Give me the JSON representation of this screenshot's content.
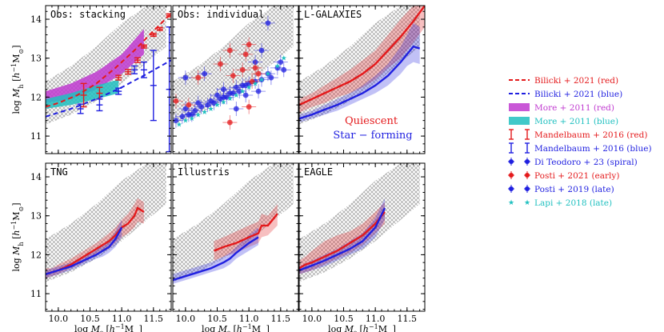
{
  "chart_data": {
    "type": "line",
    "xlabel": "log M_* [h^-1 M_⊙]",
    "ylabel": "log M_h [h^-1 M_⊙]",
    "xlim": [
      9.8,
      11.78
    ],
    "ylim": [
      10.55,
      14.35
    ],
    "xticks": [
      "10.0",
      "10.5",
      "11.0",
      "11.5"
    ],
    "yticks": [
      "11",
      "12",
      "13",
      "14"
    ],
    "colors": {
      "red": "#e41a1c",
      "blue": "#1f1fe0",
      "magenta": "#c03ad0",
      "cyan": "#20c0c0",
      "band": "#9a9a9a"
    },
    "reference_band": {
      "x": [
        9.8,
        10.2,
        10.6,
        11.0,
        11.4,
        11.7
      ],
      "lo": [
        11.3,
        11.55,
        11.9,
        12.35,
        12.9,
        13.3
      ],
      "hi": [
        12.4,
        12.8,
        13.3,
        13.9,
        14.35,
        14.35
      ]
    },
    "panels": [
      {
        "title": "Obs: stacking",
        "series": [
          {
            "name": "Bilicki + 2021 (red)",
            "kind": "dashed",
            "color": "red",
            "x": [
              9.8,
              10.0,
              10.3,
              10.6,
              10.9,
              11.2,
              11.5,
              11.78
            ],
            "y": [
              11.75,
              11.85,
              12.05,
              12.35,
              12.75,
              13.2,
              13.7,
              14.15
            ]
          },
          {
            "name": "Bilicki + 2021 (blue)",
            "kind": "dashed",
            "color": "blue",
            "x": [
              9.8,
              10.2,
              10.6,
              11.0,
              11.4,
              11.78
            ],
            "y": [
              11.5,
              11.7,
              11.95,
              12.25,
              12.6,
              12.95
            ]
          },
          {
            "name": "More + 2011 (red)",
            "kind": "band",
            "color": "magenta",
            "x": [
              9.8,
              10.2,
              10.6,
              11.0,
              11.35
            ],
            "lo": [
              11.85,
              11.95,
              12.2,
              12.6,
              13.1
            ],
            "hi": [
              12.15,
              12.35,
              12.65,
              13.1,
              13.75
            ]
          },
          {
            "name": "More + 2011 (blue)",
            "kind": "band",
            "color": "cyan",
            "x": [
              9.8,
              10.2,
              10.6,
              10.95
            ],
            "lo": [
              11.7,
              11.8,
              11.95,
              12.1
            ],
            "hi": [
              11.95,
              12.1,
              12.3,
              12.45
            ]
          },
          {
            "name": "Mandelbaum + 2016 (red)",
            "kind": "errorbar",
            "color": "red",
            "x": [
              10.4,
              10.65,
              10.95,
              11.1,
              11.25,
              11.35,
              11.5,
              11.6,
              11.75
            ],
            "y": [
              12.05,
              12.1,
              12.5,
              12.65,
              12.95,
              13.3,
              13.6,
              13.75,
              14.1
            ],
            "err": [
              0.3,
              0.15,
              0.06,
              0.06,
              0.06,
              0.04,
              0.04,
              0.04,
              0.04
            ]
          },
          {
            "name": "Mandelbaum + 2016 (blue)",
            "kind": "errorbar",
            "color": "blue",
            "x": [
              10.35,
              10.65,
              10.95,
              11.2,
              11.35,
              11.5,
              11.75
            ],
            "y": [
              11.7,
              11.8,
              12.15,
              12.7,
              12.7,
              12.3,
              12.2
            ],
            "err": [
              0.12,
              0.15,
              0.08,
              0.1,
              0.2,
              0.9,
              1.6
            ]
          }
        ]
      },
      {
        "title": "Obs: individual",
        "series": [
          {
            "name": "Di Teodoro + 23 (spiral)",
            "kind": "points",
            "color": "blue",
            "x": [
              10.0,
              10.2,
              10.4,
              10.5,
              10.6,
              10.7,
              10.8,
              10.9,
              10.95,
              11.0,
              11.1,
              11.15,
              11.2,
              11.3,
              11.35,
              11.45,
              11.5,
              11.55,
              11.2,
              11.3,
              11.1,
              10.8,
              10.1,
              10.3,
              10.6,
              10.0
            ],
            "y": [
              11.7,
              11.85,
              11.9,
              12.05,
              12.0,
              12.1,
              12.25,
              12.3,
              12.05,
              12.35,
              12.4,
              12.15,
              12.45,
              12.6,
              12.5,
              12.75,
              12.9,
              12.7,
              13.2,
              13.9,
              12.9,
              11.7,
              11.55,
              12.6,
              12.2,
              12.5
            ]
          },
          {
            "name": "Posti + 2021 (early)",
            "kind": "points",
            "color": "red",
            "x": [
              9.85,
              10.05,
              10.2,
              10.55,
              10.7,
              10.75,
              10.9,
              10.95,
              11.0,
              11.05,
              11.1,
              11.15,
              11.0,
              10.7
            ],
            "y": [
              11.9,
              11.8,
              12.5,
              12.85,
              13.2,
              12.55,
              12.7,
              13.1,
              13.35,
              12.4,
              12.75,
              12.6,
              11.75,
              11.35
            ]
          },
          {
            "name": "Posti + 2019 (late)",
            "kind": "points",
            "color": "blue",
            "x": [
              9.85,
              9.95,
              10.05,
              10.15,
              10.25,
              10.35,
              10.45,
              10.55,
              10.65,
              10.75,
              10.85,
              10.95
            ],
            "y": [
              11.4,
              11.5,
              11.55,
              11.65,
              11.75,
              11.8,
              11.85,
              11.95,
              12.0,
              12.1,
              12.15,
              12.3
            ]
          },
          {
            "name": "Lapi + 2018 (late)",
            "kind": "stars",
            "color": "cyan",
            "x": [
              9.9,
              10.0,
              10.1,
              10.2,
              10.3,
              10.4,
              10.5,
              10.6,
              10.7,
              10.8,
              10.9,
              11.0,
              11.1,
              11.2,
              11.3,
              11.45,
              11.55
            ],
            "y": [
              11.3,
              11.4,
              11.45,
              11.55,
              11.62,
              11.7,
              11.8,
              11.88,
              11.97,
              12.05,
              12.15,
              12.25,
              12.35,
              12.45,
              12.6,
              12.8,
              13.0
            ]
          }
        ]
      },
      {
        "title": "L-GALAXIES",
        "annotations": [
          "Quiescent",
          "Star − forming"
        ],
        "series": [
          {
            "name": "Quiescent",
            "kind": "line-band",
            "color": "red",
            "x": [
              9.8,
              10.0,
              10.2,
              10.4,
              10.6,
              10.8,
              11.0,
              11.2,
              11.4,
              11.6,
              11.78
            ],
            "y": [
              11.8,
              11.95,
              12.1,
              12.25,
              12.4,
              12.6,
              12.85,
              13.2,
              13.55,
              13.95,
              14.35
            ],
            "lo": [
              11.6,
              11.75,
              11.85,
              12.0,
              12.1,
              12.25,
              12.45,
              12.75,
              13.0,
              13.4,
              13.8
            ],
            "hi": [
              11.95,
              12.1,
              12.3,
              12.5,
              12.7,
              12.95,
              13.2,
              13.6,
              14.0,
              14.35,
              14.35
            ]
          },
          {
            "name": "Star − forming",
            "kind": "line-band",
            "color": "blue",
            "x": [
              9.8,
              10.0,
              10.2,
              10.4,
              10.6,
              10.8,
              11.0,
              11.2,
              11.4,
              11.5,
              11.6,
              11.7
            ],
            "y": [
              11.45,
              11.55,
              11.68,
              11.8,
              11.95,
              12.1,
              12.3,
              12.55,
              12.9,
              13.1,
              13.3,
              13.25
            ],
            "lo": [
              11.35,
              11.45,
              11.55,
              11.65,
              11.8,
              11.95,
              12.1,
              12.3,
              12.6,
              12.8,
              12.9,
              12.85
            ],
            "hi": [
              11.55,
              11.65,
              11.8,
              11.95,
              12.1,
              12.3,
              12.55,
              12.85,
              13.3,
              13.6,
              13.9,
              13.8
            ]
          }
        ]
      },
      {
        "title": "TNG",
        "series": [
          {
            "name": "red",
            "kind": "line-band",
            "color": "red",
            "x": [
              9.8,
              9.9,
              10.0,
              10.2,
              10.4,
              10.6,
              10.8,
              10.9,
              11.0,
              11.1,
              11.2,
              11.25,
              11.35
            ],
            "y": [
              11.5,
              11.55,
              11.6,
              11.75,
              11.95,
              12.15,
              12.35,
              12.5,
              12.7,
              12.8,
              13.0,
              13.2,
              13.1
            ],
            "lo": [
              11.4,
              11.45,
              11.5,
              11.65,
              11.8,
              12.0,
              12.15,
              12.3,
              12.45,
              12.55,
              12.7,
              12.85,
              12.8
            ],
            "hi": [
              11.65,
              11.65,
              11.75,
              11.9,
              12.1,
              12.3,
              12.55,
              12.7,
              12.9,
              13.05,
              13.3,
              13.45,
              13.35
            ]
          },
          {
            "name": "blue",
            "kind": "line-band",
            "color": "blue",
            "x": [
              9.8,
              10.0,
              10.2,
              10.4,
              10.6,
              10.7,
              10.8,
              10.9,
              11.0
            ],
            "y": [
              11.5,
              11.6,
              11.7,
              11.85,
              12.0,
              12.1,
              12.2,
              12.4,
              12.7
            ],
            "lo": [
              11.4,
              11.5,
              11.6,
              11.75,
              11.9,
              11.95,
              12.05,
              12.2,
              12.45
            ],
            "hi": [
              11.6,
              11.7,
              11.8,
              11.95,
              12.15,
              12.25,
              12.35,
              12.6,
              12.9
            ]
          }
        ]
      },
      {
        "title": "Illustris",
        "series": [
          {
            "name": "red",
            "kind": "line-band",
            "color": "red",
            "x": [
              10.45,
              10.6,
              10.8,
              11.0,
              11.15,
              11.2,
              11.3,
              11.45
            ],
            "y": [
              12.1,
              12.2,
              12.3,
              12.45,
              12.55,
              12.75,
              12.75,
              13.05
            ],
            "lo": [
              11.85,
              11.95,
              12.05,
              12.2,
              12.3,
              12.45,
              12.5,
              12.75
            ],
            "hi": [
              12.35,
              12.45,
              12.6,
              12.75,
              12.85,
              13.05,
              13.0,
              13.3
            ]
          },
          {
            "name": "blue",
            "kind": "line-band",
            "color": "blue",
            "x": [
              9.8,
              10.0,
              10.2,
              10.4,
              10.6,
              10.7,
              10.8,
              11.0,
              11.15
            ],
            "y": [
              11.35,
              11.45,
              11.55,
              11.65,
              11.8,
              11.9,
              12.05,
              12.3,
              12.45
            ],
            "lo": [
              11.25,
              11.35,
              11.45,
              11.55,
              11.65,
              11.75,
              11.9,
              12.1,
              12.25
            ],
            "hi": [
              11.5,
              11.6,
              11.7,
              11.8,
              11.95,
              12.05,
              12.2,
              12.5,
              12.7
            ]
          }
        ]
      },
      {
        "title": "EAGLE",
        "series": [
          {
            "name": "red",
            "kind": "line-band",
            "color": "red",
            "x": [
              9.8,
              9.9,
              10.0,
              10.2,
              10.4,
              10.6,
              10.8,
              11.0,
              11.15
            ],
            "y": [
              11.65,
              11.75,
              11.8,
              11.95,
              12.1,
              12.3,
              12.5,
              12.8,
              13.1
            ],
            "lo": [
              11.5,
              11.55,
              11.6,
              11.75,
              11.9,
              12.05,
              12.25,
              12.55,
              12.8
            ],
            "hi": [
              11.85,
              11.95,
              12.1,
              12.35,
              12.5,
              12.6,
              12.8,
              13.1,
              13.35
            ]
          },
          {
            "name": "blue",
            "kind": "line-band",
            "color": "blue",
            "x": [
              9.8,
              10.0,
              10.2,
              10.4,
              10.6,
              10.8,
              11.0,
              11.15
            ],
            "y": [
              11.6,
              11.72,
              11.85,
              12.0,
              12.15,
              12.35,
              12.7,
              13.2
            ],
            "lo": [
              11.5,
              11.6,
              11.7,
              11.85,
              12.0,
              12.15,
              12.45,
              12.9
            ],
            "hi": [
              11.7,
              11.85,
              12.0,
              12.15,
              12.35,
              12.55,
              12.95,
              13.45
            ]
          }
        ]
      }
    ],
    "legend": [
      {
        "label": "Bilicki + 2021 (red)",
        "marker": "dashed",
        "color": "red"
      },
      {
        "label": "Bilicki + 2021 (blue)",
        "marker": "dashed",
        "color": "blue"
      },
      {
        "label": "More + 2011 (red)",
        "marker": "patch",
        "color": "magenta"
      },
      {
        "label": "More + 2011 (blue)",
        "marker": "patch",
        "color": "cyan"
      },
      {
        "label": "Mandelbaum + 2016 (red)",
        "marker": "errorbar",
        "color": "red"
      },
      {
        "label": "Mandelbaum + 2016 (blue)",
        "marker": "errorbar",
        "color": "blue"
      },
      {
        "label": "Di Teodoro + 23 (spiral)",
        "marker": "point-cross",
        "color": "blue"
      },
      {
        "label": "Posti + 2021 (early)",
        "marker": "point-cross",
        "color": "red"
      },
      {
        "label": "Posti + 2019 (late)",
        "marker": "point-cross",
        "color": "blue"
      },
      {
        "label": "Lapi + 2018 (late)",
        "marker": "star",
        "color": "cyan"
      }
    ]
  }
}
